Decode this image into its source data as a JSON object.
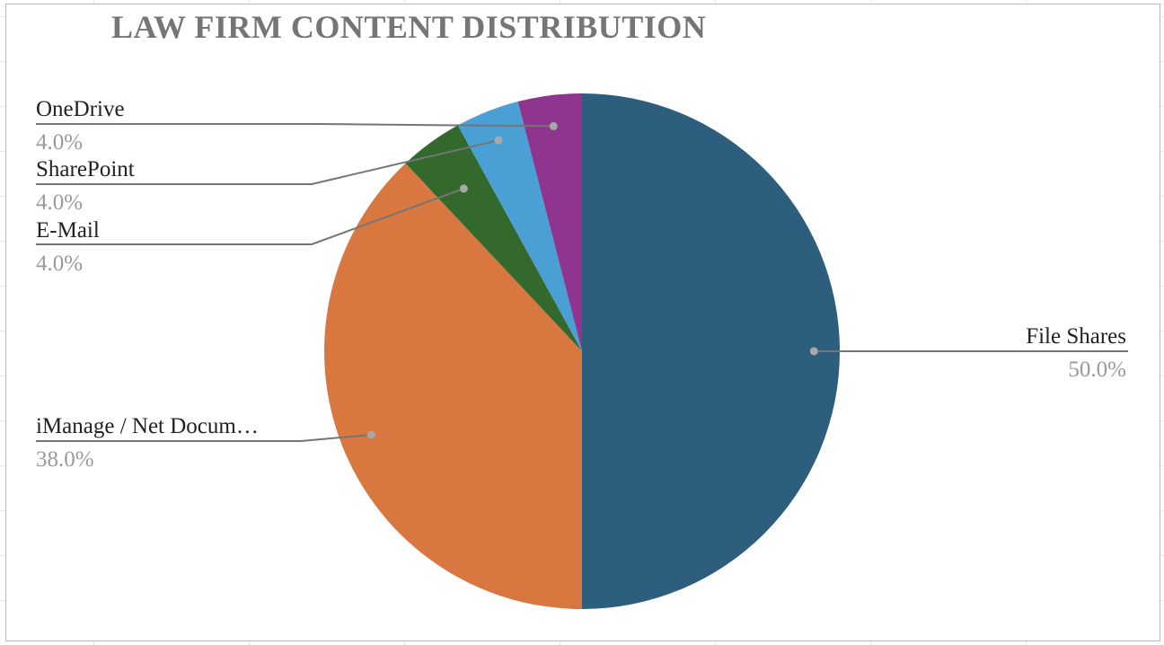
{
  "chart_data": {
    "type": "pie",
    "title": "LAW FIRM CONTENT DISTRIBUTION",
    "slices": [
      {
        "label": "File Shares",
        "value": 50.0,
        "pct_label": "50.0%",
        "color": "#2d5e7d"
      },
      {
        "label": "iManage / Net Docum…",
        "value": 38.0,
        "pct_label": "38.0%",
        "color": "#d97741"
      },
      {
        "label": "E-Mail",
        "value": 4.0,
        "pct_label": "4.0%",
        "color": "#34692e"
      },
      {
        "label": "SharePoint",
        "value": 4.0,
        "pct_label": "4.0%",
        "color": "#4a9fd5"
      },
      {
        "label": "OneDrive",
        "value": 4.0,
        "pct_label": "4.0%",
        "color": "#8f358f"
      }
    ],
    "start_angle": "12 o'clock",
    "direction": "clockwise",
    "legend": "none"
  }
}
